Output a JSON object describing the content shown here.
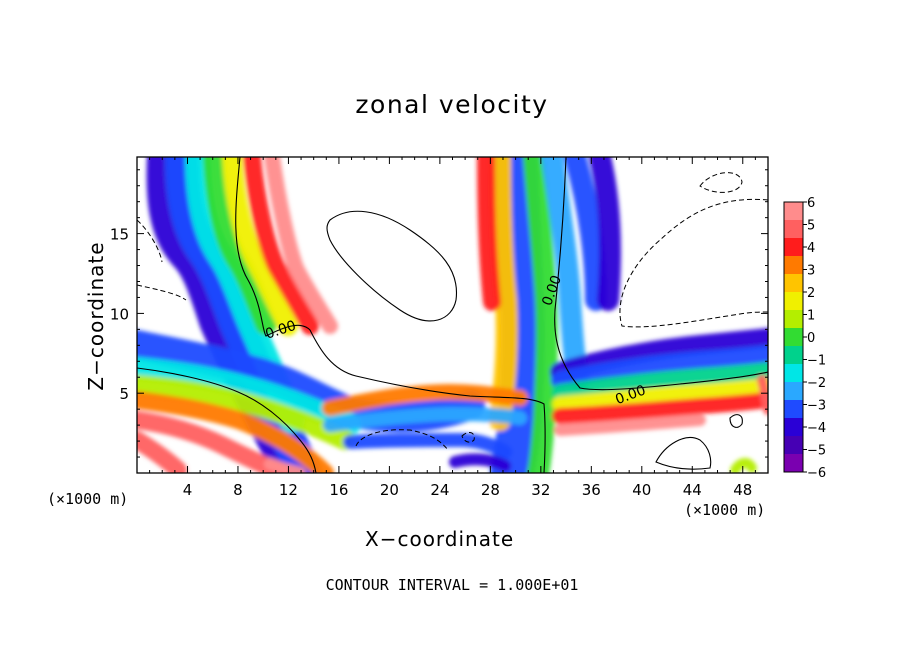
{
  "chart_data": {
    "type": "heatmap",
    "title": "zonal velocity",
    "xlabel": "X−coordinate",
    "ylabel": "Z−coordinate",
    "x_unit_label_left": "(×1000 m)",
    "x_unit_label_right": "(×1000 m)",
    "footer": "CONTOUR INTERVAL = 1.000E+01",
    "xlim": [
      0,
      50
    ],
    "ylim": [
      0,
      19.8
    ],
    "x_ticks": [
      4,
      8,
      12,
      16,
      20,
      24,
      28,
      32,
      36,
      40,
      44,
      48
    ],
    "x_tick_labels": [
      "4",
      "8",
      "12",
      "16",
      "20",
      "24",
      "28",
      "32",
      "36",
      "40",
      "44",
      "48"
    ],
    "y_ticks": [
      5,
      10,
      15
    ],
    "y_tick_labels": [
      "5",
      "10",
      "15"
    ],
    "colorbar": {
      "min": -6,
      "max": 6,
      "levels": [
        6,
        5,
        4,
        3,
        2,
        1,
        0,
        -1,
        -2,
        -3,
        -4,
        -5,
        -6
      ],
      "tick_labels": [
        "6",
        "5",
        "4",
        "3",
        "2",
        "1",
        "0",
        "−1",
        "−2",
        "−3",
        "−4",
        "−5",
        "−6"
      ],
      "colors": [
        "#ff8c8c",
        "#ff6060",
        "#ff1c1c",
        "#ff7a00",
        "#ffc400",
        "#f0f000",
        "#b4ee00",
        "#32dc32",
        "#00d28c",
        "#00e6e6",
        "#2aa8ff",
        "#1f4bff",
        "#2a00d6",
        "#4600b4",
        "#7a00b0"
      ]
    },
    "contour_labels": [
      "0.00",
      "0.00",
      "0.00"
    ],
    "grid": false
  }
}
